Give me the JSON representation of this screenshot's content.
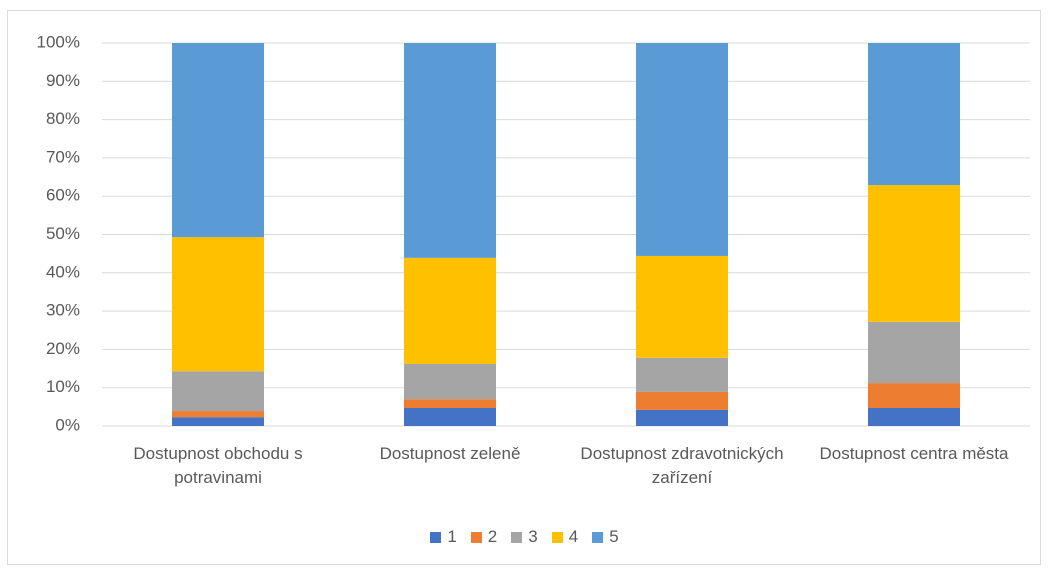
{
  "chart_data": {
    "type": "stacked_bar",
    "categories": [
      "Dostupnost obchodu s potravinami",
      "Dostupnost zeleně",
      "Dostupnost zdravotnických zařízení",
      "Dostupnost centra města"
    ],
    "series": [
      {
        "name": "1",
        "color": "#4472c4",
        "values": [
          2.3,
          4.7,
          4.2,
          4.7
        ]
      },
      {
        "name": "2",
        "color": "#ed7d31",
        "values": [
          1.6,
          2.3,
          4.7,
          6.5
        ]
      },
      {
        "name": "3",
        "color": "#a5a5a5",
        "values": [
          10.4,
          9.2,
          8.9,
          16.0
        ]
      },
      {
        "name": "4",
        "color": "#ffc000",
        "values": [
          35.0,
          27.7,
          26.6,
          35.7
        ]
      },
      {
        "name": "5",
        "color": "#5b9bd5",
        "values": [
          50.7,
          56.1,
          55.6,
          37.1
        ]
      }
    ],
    "ylim": [
      0,
      100
    ],
    "yticks": [
      {
        "value": 0,
        "label": "0%"
      },
      {
        "value": 10,
        "label": "10%"
      },
      {
        "value": 20,
        "label": "20%"
      },
      {
        "value": 30,
        "label": "30%"
      },
      {
        "value": 40,
        "label": "40%"
      },
      {
        "value": 50,
        "label": "50%"
      },
      {
        "value": 60,
        "label": "60%"
      },
      {
        "value": 70,
        "label": "70%"
      },
      {
        "value": 80,
        "label": "80%"
      },
      {
        "value": 90,
        "label": "90%"
      },
      {
        "value": 100,
        "label": "100%"
      }
    ],
    "grid": true,
    "legend": "bottom"
  }
}
